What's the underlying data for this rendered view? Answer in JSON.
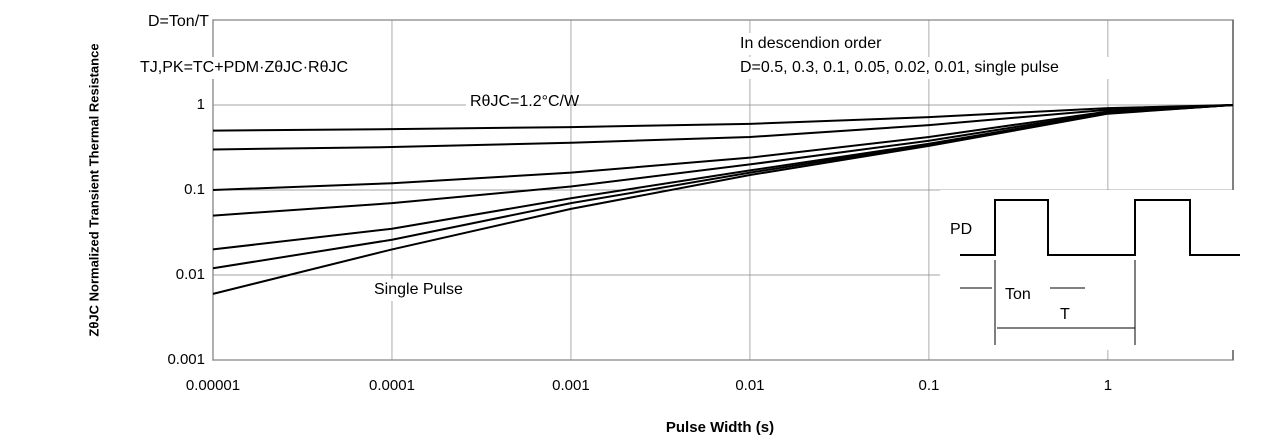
{
  "chart_data": {
    "type": "line",
    "x_label": "Pulse Width (s)",
    "y_label": "ZθJC Normalized Transient Thermal Resistance",
    "xscale": "log",
    "yscale": "log",
    "grid": true,
    "xlim": [
      1e-05,
      5
    ],
    "ylim": [
      0.001,
      10
    ],
    "xticks": [
      1e-05,
      0.0001,
      0.001,
      0.01,
      0.1,
      1
    ],
    "yticks": [
      0.001,
      0.01,
      0.1,
      1,
      10
    ],
    "x": [
      1e-05,
      0.0001,
      0.001,
      0.01,
      0.1,
      1,
      5
    ],
    "series": [
      {
        "name": "D=0.5",
        "color": "#000000",
        "values": [
          0.5,
          0.52,
          0.55,
          0.6,
          0.72,
          0.92,
          1
        ]
      },
      {
        "name": "D=0.3",
        "color": "#000000",
        "values": [
          0.3,
          0.32,
          0.36,
          0.42,
          0.58,
          0.88,
          1
        ]
      },
      {
        "name": "D=0.1",
        "color": "#000000",
        "values": [
          0.1,
          0.12,
          0.16,
          0.24,
          0.42,
          0.84,
          1
        ]
      },
      {
        "name": "D=0.05",
        "color": "#000000",
        "values": [
          0.05,
          0.07,
          0.11,
          0.2,
          0.38,
          0.82,
          1
        ]
      },
      {
        "name": "D=0.02",
        "color": "#000000",
        "values": [
          0.02,
          0.035,
          0.08,
          0.17,
          0.35,
          0.8,
          1
        ]
      },
      {
        "name": "D=0.01",
        "color": "#000000",
        "values": [
          0.012,
          0.026,
          0.07,
          0.16,
          0.34,
          0.8,
          1
        ]
      },
      {
        "name": "single pulse",
        "color": "#000000",
        "values": [
          0.006,
          0.02,
          0.06,
          0.15,
          0.33,
          0.79,
          1
        ]
      }
    ],
    "annotations": [
      "D=Ton/T",
      "TJ,PK=TC+PDM·ZθJC·RθJC",
      "In descendion order",
      "D=0.5, 0.3, 0.1, 0.05, 0.02, 0.01, single pulse",
      "RθJC=1.2°C/W",
      "Single Pulse"
    ],
    "pulse_labels": [
      "PD",
      "Ton",
      "T"
    ]
  }
}
